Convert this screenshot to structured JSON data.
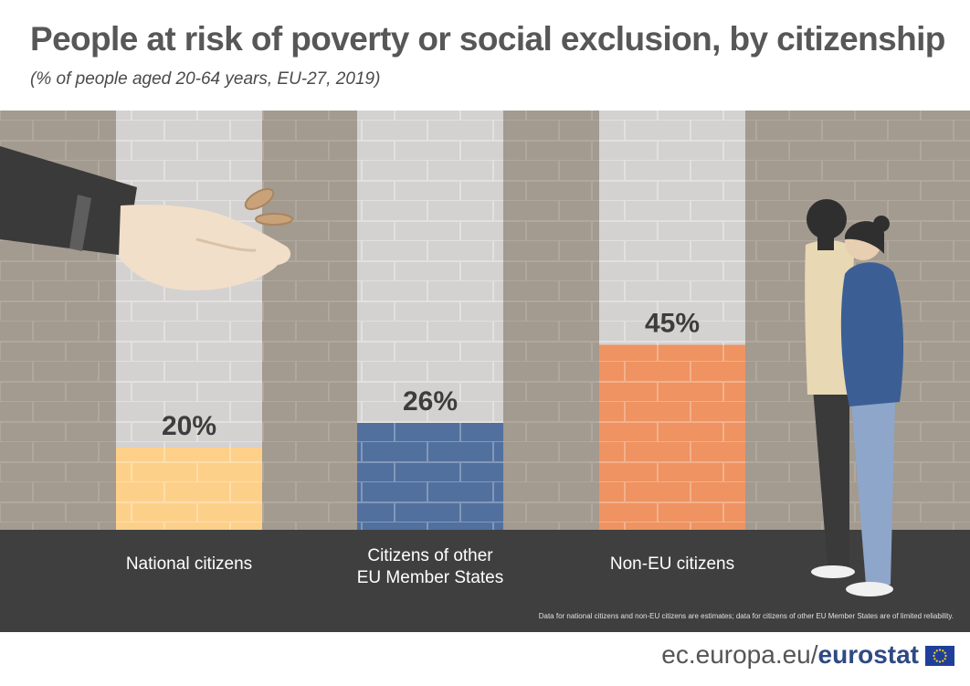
{
  "title": "People at risk of poverty or social exclusion, by citizenship",
  "subtitle": "(% of people aged 20-64 years, EU-27, 2019)",
  "footnote": "Data for national citizens and non-EU citizens are estimates; data for citizens of other EU Member States are of limited reliability.",
  "source": {
    "prefix": "ec.europa.eu/",
    "brand": "eurostat"
  },
  "colors": {
    "national": "#fdd08a",
    "other_eu": "#52709e",
    "non_eu": "#ee9361",
    "wall": "#a39a90",
    "column": "#d3d2d1",
    "floor": "#3f3f40"
  },
  "chart_data": {
    "type": "bar",
    "title": "People at risk of poverty or social exclusion, by citizenship",
    "subtitle": "(% of people aged 20-64 years, EU-27, 2019)",
    "categories": [
      "National citizens",
      "Citizens of other EU Member States",
      "Non-EU citizens"
    ],
    "category_lines": [
      [
        "National citizens"
      ],
      [
        "Citizens of other",
        "EU Member States"
      ],
      [
        "Non-EU citizens"
      ]
    ],
    "values": [
      20,
      26,
      45
    ],
    "value_labels": [
      "20%",
      "26%",
      "45%"
    ],
    "unit": "%",
    "ylim": [
      0,
      100
    ],
    "grid": false,
    "legend": "none"
  }
}
